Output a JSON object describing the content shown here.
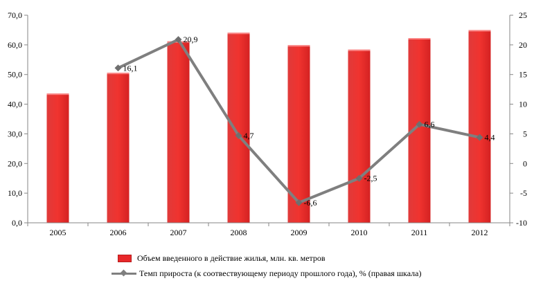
{
  "chart_data": {
    "type": "bar+line",
    "categories": [
      "2005",
      "2006",
      "2007",
      "2008",
      "2009",
      "2010",
      "2011",
      "2012"
    ],
    "series": [
      {
        "name": "Объем введенного в действие жилья, млн. кв. метров",
        "type": "bar",
        "axis": "left",
        "color": "#e8282a",
        "values": [
          43.6,
          50.6,
          61.2,
          64.1,
          59.9,
          58.4,
          62.3,
          65.0
        ]
      },
      {
        "name": "Темп прироста (к соотвествующему  периоду прошлого года), % (правая шкала)",
        "type": "line",
        "axis": "right",
        "color": "#7f7f7f",
        "x": [
          "2006",
          "2007",
          "2008",
          "2009",
          "2010",
          "2011",
          "2012"
        ],
        "values": [
          16.1,
          20.9,
          4.7,
          -6.6,
          -2.5,
          6.6,
          4.4
        ],
        "labels": [
          "16,1",
          "20,9",
          "4,7",
          "-6,6",
          "-2,5",
          "6,6",
          "4,4"
        ]
      }
    ],
    "y_left": {
      "ylim": [
        0,
        70
      ],
      "ticks": [
        "0,0",
        "10,0",
        "20,0",
        "30,0",
        "40,0",
        "50,0",
        "60,0",
        "70,0"
      ]
    },
    "y_right": {
      "ylim": [
        -10,
        25
      ],
      "ticks": [
        "-10",
        "-5",
        "0",
        "5",
        "10",
        "15",
        "20",
        "25"
      ]
    },
    "grid": false,
    "legend_position": "bottom"
  }
}
